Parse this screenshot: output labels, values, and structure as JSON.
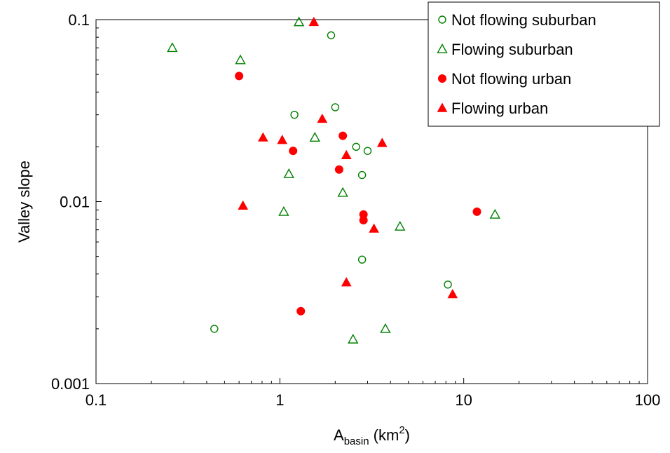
{
  "chart_data": {
    "type": "scatter",
    "title": "",
    "xlabel": {
      "main": "A",
      "sub": "basin",
      "unit_pre": " (km",
      "sup": "2",
      "unit_post": ")"
    },
    "ylabel": "Valley slope",
    "x_scale": "log",
    "y_scale": "log",
    "xlim": [
      0.1,
      100
    ],
    "ylim": [
      0.001,
      0.1
    ],
    "x_ticks": [
      0.1,
      1,
      10,
      100
    ],
    "x_tick_labels": [
      "0.1",
      "1",
      "10",
      "100"
    ],
    "y_ticks": [
      0.001,
      0.01,
      0.1
    ],
    "y_tick_labels": [
      "0.001",
      "0.01",
      "0.1"
    ],
    "grid": false,
    "legend_position": "top-right",
    "series": [
      {
        "name": "Not flowing suburban",
        "marker": "circle-open",
        "color": "#008000",
        "points": [
          [
            1.9,
            0.082
          ],
          [
            1.2,
            0.03
          ],
          [
            2.0,
            0.033
          ],
          [
            2.6,
            0.02
          ],
          [
            3.0,
            0.019
          ],
          [
            2.8,
            0.014
          ],
          [
            2.8,
            0.0048
          ],
          [
            8.2,
            0.0035
          ],
          [
            0.44,
            0.002
          ]
        ]
      },
      {
        "name": "Flowing suburban",
        "marker": "triangle-open",
        "color": "#008000",
        "points": [
          [
            1.27,
            0.097
          ],
          [
            0.26,
            0.07
          ],
          [
            0.61,
            0.06
          ],
          [
            1.55,
            0.0225
          ],
          [
            1.12,
            0.0142
          ],
          [
            2.2,
            0.0112
          ],
          [
            1.05,
            0.0088
          ],
          [
            4.5,
            0.0073
          ],
          [
            14.8,
            0.0085
          ],
          [
            3.75,
            0.002
          ],
          [
            2.5,
            0.00175
          ]
        ]
      },
      {
        "name": "Not flowing urban",
        "marker": "circle-filled",
        "color": "#ff0000",
        "points": [
          [
            0.6,
            0.049
          ],
          [
            2.2,
            0.023
          ],
          [
            1.18,
            0.019
          ],
          [
            2.1,
            0.015
          ],
          [
            2.85,
            0.0085
          ],
          [
            2.85,
            0.0079
          ],
          [
            11.8,
            0.0088
          ],
          [
            1.3,
            0.0025
          ]
        ]
      },
      {
        "name": "Flowing urban",
        "marker": "triangle-filled",
        "color": "#ff0000",
        "points": [
          [
            1.53,
            0.097
          ],
          [
            1.7,
            0.0285
          ],
          [
            0.81,
            0.0225
          ],
          [
            1.03,
            0.0218
          ],
          [
            2.3,
            0.018
          ],
          [
            3.6,
            0.021
          ],
          [
            0.63,
            0.0095
          ],
          [
            3.25,
            0.0071
          ],
          [
            2.3,
            0.0036
          ],
          [
            8.7,
            0.0031
          ]
        ]
      }
    ]
  }
}
